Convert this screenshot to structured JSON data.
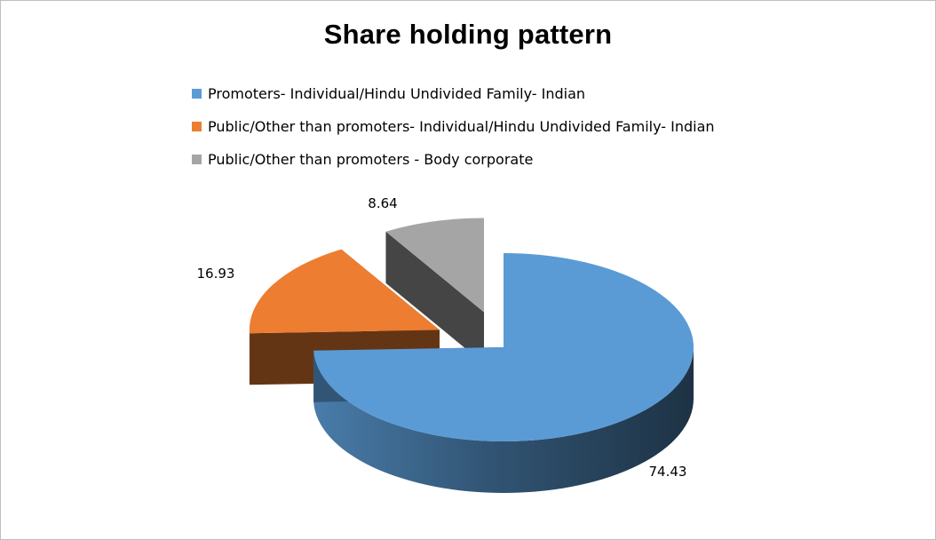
{
  "chart_data": {
    "type": "pie",
    "title": "Share holding pattern",
    "legend_position": "top",
    "series": [
      {
        "categories": [
          "Promoters- Individual/Hindu Undivided Family- Indian",
          "Public/Other than promoters- Individual/Hindu Undivided Family- Indian",
          "Public/Other than promoters - Body corporate"
        ],
        "values": [
          74.43,
          16.93,
          8.64
        ],
        "data_labels": [
          "74.43",
          "16.93",
          "8.64"
        ]
      }
    ],
    "colors": [
      "#5b9bd5",
      "#ed7d31",
      "#a5a5a5"
    ],
    "style": "3d-exploded-pie"
  }
}
